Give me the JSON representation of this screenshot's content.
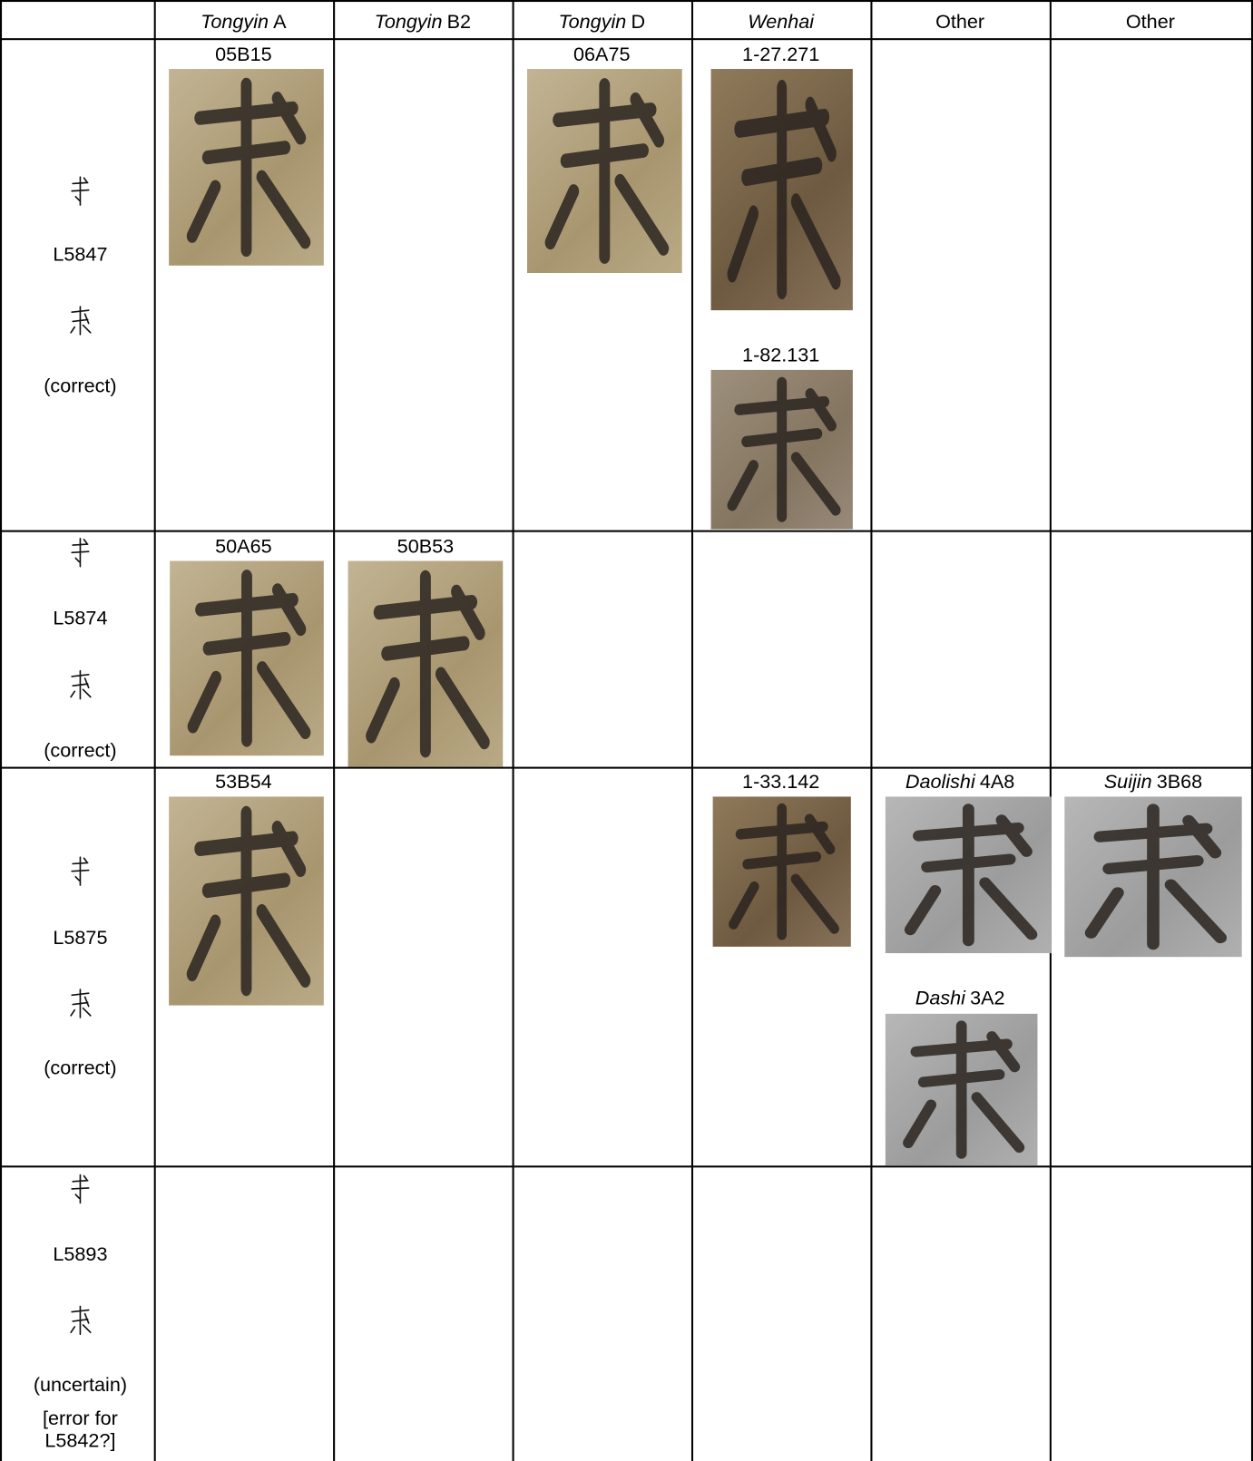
{
  "header": [
    {
      "italic": "Tongyin",
      "rest": "A"
    },
    {
      "italic": "Tongyin",
      "rest": "B2"
    },
    {
      "italic": "Tongyin",
      "rest": "D"
    },
    {
      "italic": "Wenhai"
    },
    {
      "rest": "Other"
    },
    {
      "rest": "Other"
    }
  ],
  "rows": [
    {
      "code": "L5847",
      "status": "(correct)",
      "images": [
        {
          "label": "05B15"
        },
        {
          "label": "06A75"
        },
        {
          "label": "1-27.271"
        },
        {
          "label": "1-82.131"
        }
      ]
    },
    {
      "code": "L5874",
      "status": "(correct)",
      "images": [
        {
          "label": "50A65"
        },
        {
          "label": "50B53"
        }
      ]
    },
    {
      "code": "L5875",
      "status": "(correct)",
      "images": [
        {
          "label": "53B54"
        },
        {
          "label": "1-33.142"
        },
        {
          "source": "Daolishi",
          "label": "4A8"
        },
        {
          "source": "Suijin",
          "label": "3B68"
        },
        {
          "source": "Dashi",
          "label": "3A2"
        }
      ]
    },
    {
      "code": "L5893",
      "status": "(uncertain)",
      "note": "[error for L5842?]",
      "images": []
    }
  ]
}
